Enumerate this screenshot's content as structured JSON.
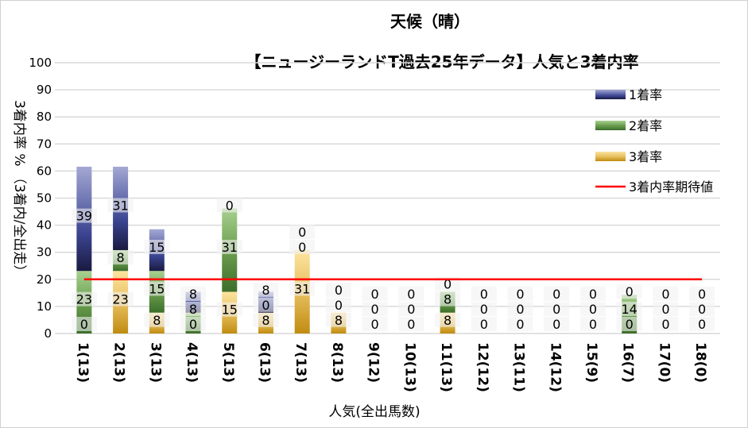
{
  "chart_data": {
    "type": "bar",
    "stacked": true,
    "title": "天候（晴）",
    "subtitle": "【ニュージーランドT過去25年データ】人気と3着内率",
    "xlabel": "人気(全出馬数)",
    "ylabel": "3着内率 %  （3着内/全出走）",
    "ylim": [
      0,
      100
    ],
    "yticks": [
      0,
      10,
      20,
      30,
      40,
      50,
      60,
      70,
      80,
      90,
      100
    ],
    "grid": true,
    "legend_position": "top-right",
    "categories": [
      "1(13)",
      "2(13)",
      "3(13)",
      "4(13)",
      "5(13)",
      "6(13)",
      "7(13)",
      "8(13)",
      "9(12)",
      "10(13)",
      "11(13)",
      "12(12)",
      "13(11)",
      "14(12)",
      "15(9)",
      "16(7)",
      "17(0)",
      "18(0)"
    ],
    "series": [
      {
        "name": "3着率",
        "color": "#e0b040",
        "values": [
          0,
          23.1,
          7.7,
          0,
          15.4,
          7.7,
          30.8,
          7.7,
          0,
          0,
          7.7,
          0,
          0,
          0,
          0,
          0,
          0,
          0
        ]
      },
      {
        "name": "2着率",
        "color": "#5a9040",
        "values": [
          23.1,
          7.7,
          15.4,
          7.7,
          30.8,
          0,
          0,
          0,
          0,
          0,
          7.7,
          0,
          0,
          0,
          0,
          14.3,
          0,
          0
        ]
      },
      {
        "name": "1着率",
        "color": "#303880",
        "values": [
          38.5,
          30.8,
          15.4,
          7.7,
          0,
          7.7,
          0,
          0,
          0,
          0,
          0,
          0,
          0,
          0,
          0,
          0,
          0,
          0
        ]
      }
    ],
    "reference_line": {
      "name": "3着内率期待値",
      "value": 20,
      "color": "#ff0000"
    }
  }
}
